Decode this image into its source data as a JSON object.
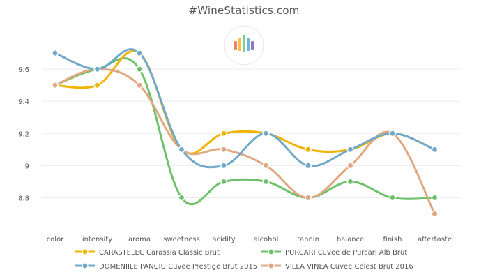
{
  "chart_data": {
    "type": "line",
    "title": "#WineStatistics.com",
    "categories": [
      "color",
      "intensity",
      "aroma",
      "sweetness",
      "acidity",
      "alcohol",
      "tannin",
      "balance",
      "finish",
      "aftertaste"
    ],
    "ylim": [
      8.65,
      9.77
    ],
    "yticks": [
      8.8,
      9,
      9.2,
      9.4,
      9.6
    ],
    "ytick_labels": [
      "8.8",
      "9",
      "9.2",
      "9.4",
      "9.6"
    ],
    "grid": true,
    "series": [
      {
        "name": "CARASTELEC Carassia Classic Brut",
        "color": "#f0b400",
        "values": [
          9.5,
          9.5,
          9.7,
          9.1,
          9.2,
          9.2,
          9.1,
          9.1,
          9.2,
          9.1
        ]
      },
      {
        "name": "PURCARI Cuvee de Purcari Alb Brut",
        "color": "#6ec16a",
        "values": [
          9.5,
          9.6,
          9.6,
          8.8,
          8.9,
          8.9,
          8.8,
          8.9,
          8.8,
          8.8
        ]
      },
      {
        "name": "DOMENIILE PANCIU Cuvee Prestige Brut 2015",
        "color": "#6fa8c9",
        "values": [
          9.7,
          9.6,
          9.7,
          9.1,
          9.0,
          9.2,
          9.0,
          9.1,
          9.2,
          9.1
        ]
      },
      {
        "name": "VILLA VINEA Cuvee Celest Brut 2016",
        "color": "#e0a882",
        "values": [
          9.5,
          9.6,
          9.5,
          9.1,
          9.1,
          9.0,
          8.8,
          9.0,
          9.2,
          8.7
        ]
      }
    ],
    "legend": "bottom",
    "logo_bar_colors": [
      "#f07f6b",
      "#f5c342",
      "#7ecf8c",
      "#6fb7d9",
      "#8b79c7"
    ]
  }
}
